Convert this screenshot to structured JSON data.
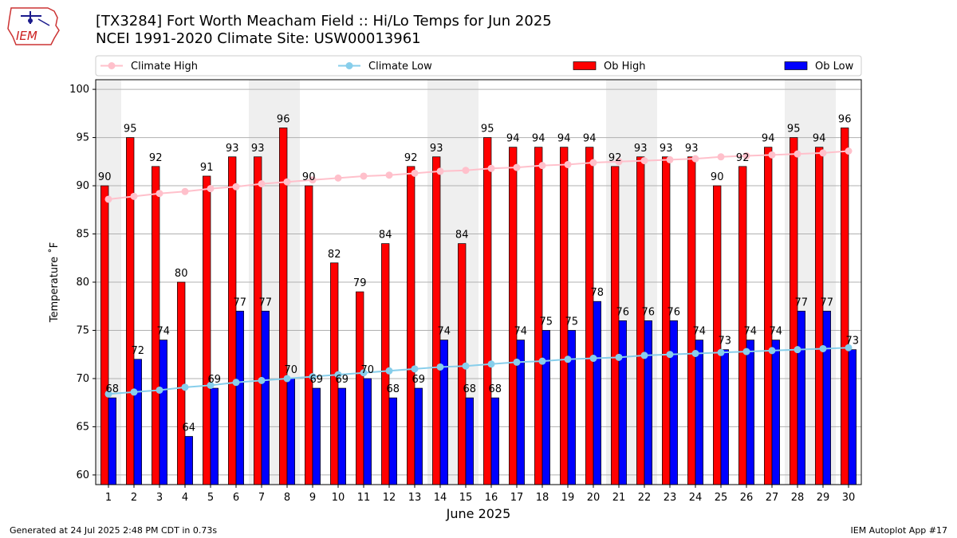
{
  "logo": {
    "text": "IEM",
    "label": "iem-logo"
  },
  "header": {
    "title_line1": "[TX3284] Fort Worth Meacham Field :: Hi/Lo Temps for Jun 2025",
    "title_line2": "NCEI 1991-2020 Climate Site: USW00013961"
  },
  "footer": {
    "left": "Generated at 24 Jul 2025 2:48 PM CDT in 0.73s",
    "right": "IEM Autoplot App #17"
  },
  "colors": {
    "ob_high": "#ff0000",
    "ob_low": "#0000ff",
    "climate_high": "#ffc0cb",
    "climate_low": "#87ceeb",
    "weekend_shade": "#efefef",
    "grid": "#b0b0b0"
  },
  "chart_data": {
    "type": "bar",
    "xlabel": "June 2025",
    "ylabel": "Temperature ˚F",
    "ylim": [
      59,
      101
    ],
    "yticks": [
      60,
      65,
      70,
      75,
      80,
      85,
      90,
      95,
      100
    ],
    "grid": "horizontal",
    "legend_position": "top",
    "legend": [
      "Climate High",
      "Climate Low",
      "Ob High",
      "Ob Low"
    ],
    "shaded_days": [
      1,
      7,
      8,
      14,
      15,
      21,
      22,
      28,
      29
    ],
    "categories": [
      "1",
      "2",
      "3",
      "4",
      "5",
      "6",
      "7",
      "8",
      "9",
      "10",
      "11",
      "12",
      "13",
      "14",
      "15",
      "16",
      "17",
      "18",
      "19",
      "20",
      "21",
      "22",
      "23",
      "24",
      "25",
      "26",
      "27",
      "28",
      "29",
      "30"
    ],
    "series": [
      {
        "name": "Ob High",
        "kind": "bar",
        "values": [
          90,
          95,
          92,
          80,
          91,
          93,
          93,
          96,
          90,
          82,
          79,
          84,
          92,
          93,
          84,
          95,
          94,
          94,
          94,
          94,
          92,
          93,
          93,
          93,
          90,
          92,
          94,
          95,
          94,
          96
        ]
      },
      {
        "name": "Ob Low",
        "kind": "bar",
        "values": [
          68,
          72,
          74,
          64,
          69,
          77,
          77,
          70,
          69,
          69,
          70,
          68,
          69,
          74,
          68,
          68,
          74,
          75,
          75,
          78,
          76,
          76,
          76,
          74,
          73,
          74,
          74,
          77,
          77,
          73
        ]
      },
      {
        "name": "Climate High",
        "kind": "line",
        "values": [
          88.6,
          88.9,
          89.2,
          89.4,
          89.7,
          89.9,
          90.2,
          90.4,
          90.6,
          90.8,
          91.0,
          91.1,
          91.3,
          91.5,
          91.6,
          91.8,
          91.9,
          92.1,
          92.2,
          92.4,
          92.5,
          92.6,
          92.7,
          92.8,
          93.0,
          93.1,
          93.2,
          93.3,
          93.4,
          93.6
        ]
      },
      {
        "name": "Climate Low",
        "kind": "line",
        "values": [
          68.4,
          68.6,
          68.8,
          69.1,
          69.3,
          69.6,
          69.8,
          70.0,
          70.2,
          70.4,
          70.6,
          70.8,
          71.0,
          71.2,
          71.3,
          71.5,
          71.7,
          71.8,
          72.0,
          72.1,
          72.2,
          72.4,
          72.5,
          72.6,
          72.7,
          72.8,
          72.9,
          73.0,
          73.1,
          73.2
        ]
      }
    ]
  }
}
